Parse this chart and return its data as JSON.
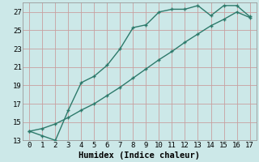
{
  "xlabel": "Humidex (Indice chaleur)",
  "xlim": [
    -0.5,
    17.5
  ],
  "ylim": [
    13,
    28
  ],
  "xticks": [
    0,
    1,
    2,
    3,
    4,
    5,
    6,
    7,
    8,
    9,
    10,
    11,
    12,
    13,
    14,
    15,
    16,
    17
  ],
  "yticks": [
    13,
    15,
    17,
    19,
    21,
    23,
    25,
    27
  ],
  "line1_x": [
    0,
    1,
    2,
    3,
    4,
    5,
    6,
    7,
    8,
    9,
    10,
    11,
    12,
    13,
    14,
    15,
    16,
    17
  ],
  "line1_y": [
    14.0,
    13.5,
    13.0,
    16.3,
    19.3,
    20.0,
    21.2,
    23.0,
    25.3,
    25.6,
    27.0,
    27.3,
    27.3,
    27.7,
    26.6,
    27.7,
    27.7,
    26.5
  ],
  "line2_x": [
    0,
    1,
    2,
    3,
    4,
    5,
    6,
    7,
    8,
    9,
    10,
    11,
    12,
    13,
    14,
    15,
    16,
    17
  ],
  "line2_y": [
    14.0,
    14.3,
    14.8,
    15.5,
    16.3,
    17.0,
    17.9,
    18.8,
    19.8,
    20.8,
    21.8,
    22.7,
    23.7,
    24.6,
    25.5,
    26.2,
    27.0,
    26.4
  ],
  "line_color": "#2d7a6b",
  "bg_color": "#cce8e8",
  "grid_color_v": "#c8a0a0",
  "grid_color_h": "#c8a0a0",
  "tick_fontsize": 6.5,
  "xlabel_fontsize": 7.5,
  "linewidth": 1.0,
  "markersize": 3.5
}
